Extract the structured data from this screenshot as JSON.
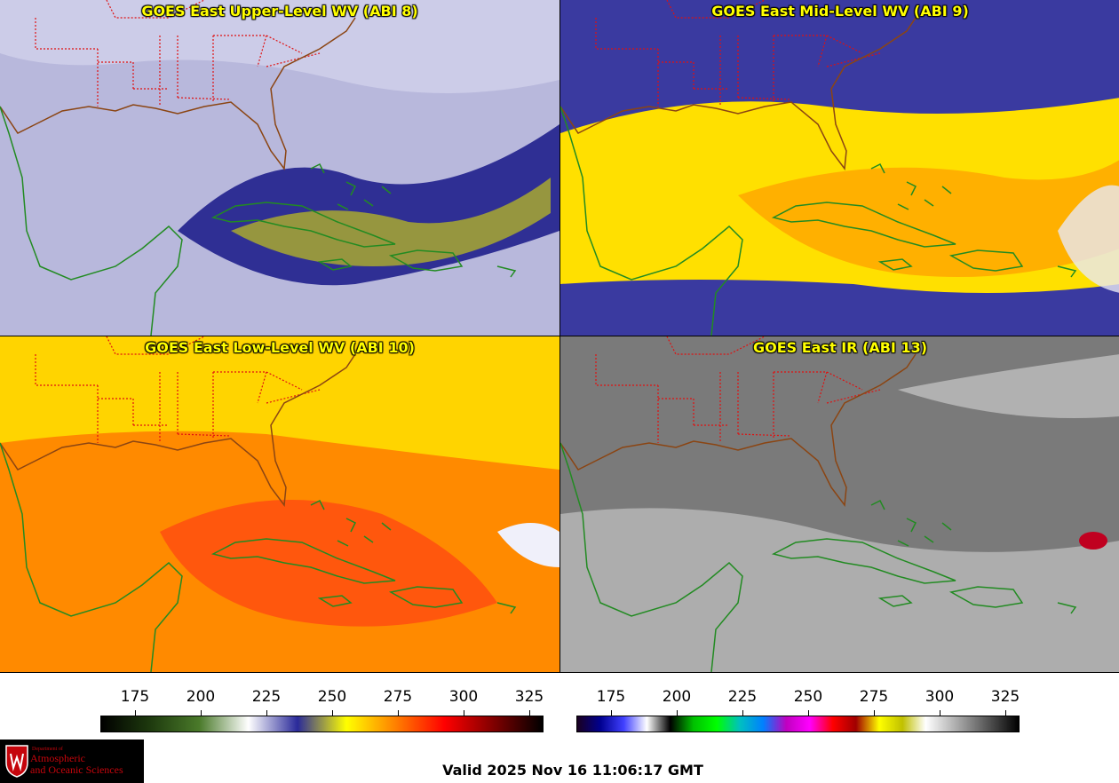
{
  "panels": [
    {
      "title": "GOES East Upper-Level WV (ABI 8)",
      "palette": "wv",
      "background": "#b8b8dc",
      "features": [
        "#20208c",
        "#a8a830",
        "#d8d8f0"
      ]
    },
    {
      "title": "GOES East Mid-Level WV (ABI 9)",
      "palette": "wv",
      "background": "#3a3aa0",
      "features": [
        "#ffe000",
        "#ffb000",
        "#e8e8f4"
      ]
    },
    {
      "title": "GOES East Low-Level WV (ABI 10)",
      "palette": "wv",
      "background": "#ffd400",
      "features": [
        "#ff8a00",
        "#ff4a10",
        "#f0f0fa"
      ]
    },
    {
      "title": "GOES East IR (ABI 13)",
      "palette": "ir",
      "background": "#7a7a7a",
      "features": [
        "#cfcfcf",
        "#e8e8e8",
        "#c00020"
      ]
    }
  ],
  "map_colors": {
    "coastline": "#228b22",
    "us_coast": "#8b4513",
    "state_lines": "#e01010"
  },
  "colorbars": [
    {
      "name": "wv",
      "ticks": [
        "175",
        "200",
        "225",
        "250",
        "275",
        "300",
        "325"
      ],
      "stops": [
        "#000000",
        "#1e3a0e",
        "#4a7a2a",
        "#ffffff",
        "#2a2a9a",
        "#ffff00",
        "#ff8000",
        "#ff0000",
        "#800000",
        "#000000"
      ]
    },
    {
      "name": "ir",
      "ticks": [
        "175",
        "200",
        "225",
        "250",
        "275",
        "300",
        "325"
      ],
      "stops": [
        "#1a0020",
        "#000090",
        "#4040ff",
        "#ffffff",
        "#000000",
        "#00c000",
        "#00ff00",
        "#00c0c0",
        "#0080ff",
        "#c000c0",
        "#ff00ff",
        "#ff0000",
        "#a00000",
        "#ffff00",
        "#c0c000",
        "#ffffff",
        "#c0c0c0",
        "#808080",
        "#404040",
        "#000000"
      ]
    }
  ],
  "logo": {
    "dept": "Department of",
    "line1": "Atmospheric",
    "line2": "and Oceanic Sciences"
  },
  "valid_time": "Valid 2025 Nov 16 11:06:17 GMT"
}
